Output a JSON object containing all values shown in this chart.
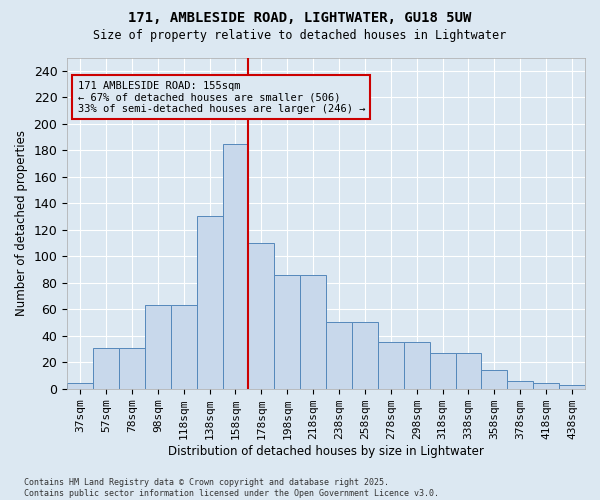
{
  "title": "171, AMBLESIDE ROAD, LIGHTWATER, GU18 5UW",
  "subtitle": "Size of property relative to detached houses in Lightwater",
  "xlabel": "Distribution of detached houses by size in Lightwater",
  "ylabel": "Number of detached properties",
  "bar_color": "#c8d8eb",
  "bar_edge_color": "#5588bb",
  "background_color": "#dce8f2",
  "grid_color": "#ffffff",
  "vline_color": "#cc0000",
  "annotation_box_edgecolor": "#cc0000",
  "annotation_text": "171 AMBLESIDE ROAD: 155sqm\n← 67% of detached houses are smaller (506)\n33% of semi-detached houses are larger (246) →",
  "bin_labels": [
    "37sqm",
    "57sqm",
    "78sqm",
    "98sqm",
    "118sqm",
    "138sqm",
    "158sqm",
    "178sqm",
    "198sqm",
    "218sqm",
    "238sqm",
    "258sqm",
    "278sqm",
    "298sqm",
    "318sqm",
    "338sqm",
    "358sqm",
    "378sqm",
    "418sqm",
    "438sqm"
  ],
  "bar_values": [
    4,
    31,
    31,
    63,
    63,
    130,
    185,
    110,
    86,
    86,
    50,
    50,
    35,
    35,
    27,
    27,
    14,
    6,
    4,
    3
  ],
  "vline_index": 6.5,
  "ylim": [
    0,
    250
  ],
  "yticks": [
    0,
    20,
    40,
    60,
    80,
    100,
    120,
    140,
    160,
    180,
    200,
    220,
    240
  ],
  "footnote": "Contains HM Land Registry data © Crown copyright and database right 2025.\nContains public sector information licensed under the Open Government Licence v3.0."
}
